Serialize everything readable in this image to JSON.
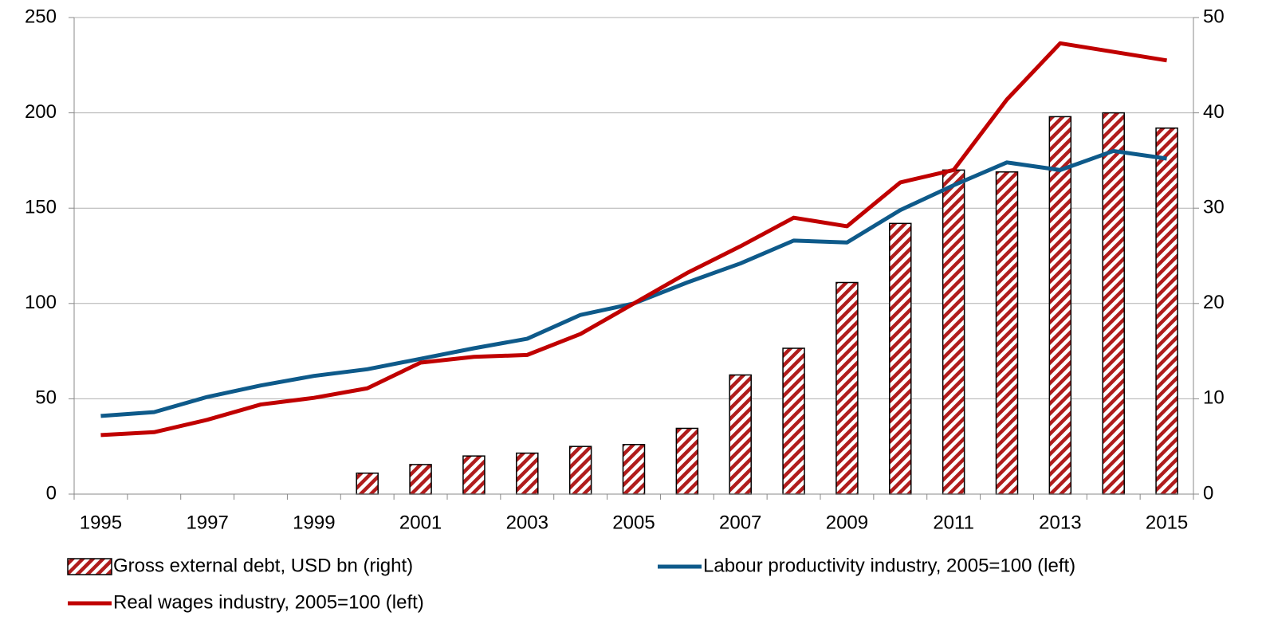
{
  "chart_data": {
    "type": "bar",
    "categories": [
      "1995",
      null,
      "1997",
      null,
      "1999",
      null,
      "2001",
      null,
      "2003",
      null,
      "2005",
      null,
      "2007",
      null,
      "2009",
      null,
      "2011",
      null,
      "2013",
      null,
      "2015"
    ],
    "series": [
      {
        "name": "Gross external debt, USD bn (right)",
        "type": "bar",
        "axis": "y2",
        "color": "#b01c1c",
        "values": [
          null,
          null,
          null,
          null,
          null,
          2.2,
          3.1,
          4.0,
          4.3,
          5.0,
          5.2,
          6.9,
          12.5,
          15.3,
          22.2,
          28.4,
          34.0,
          33.8,
          39.6,
          40.0,
          38.4
        ]
      },
      {
        "name": "Labour productivity industry, 2005=100 (left)",
        "type": "line",
        "color": "#0e5a8a",
        "values": [
          41,
          43,
          51,
          57,
          62,
          65.5,
          71,
          76.5,
          81.5,
          94,
          100,
          111,
          121,
          133,
          132,
          149,
          162,
          174,
          170,
          180,
          176
        ]
      },
      {
        "name": "Real wages industry, 2005=100 (left)",
        "type": "line",
        "color": "#c00000",
        "values": [
          31,
          32.5,
          39,
          47,
          50.5,
          55.5,
          69,
          72,
          73,
          84,
          100,
          116,
          130,
          145,
          140.5,
          163.5,
          170,
          207,
          236.5,
          232,
          227.5
        ]
      }
    ],
    "ylim": [
      0,
      250
    ],
    "yticks": [
      0,
      50,
      100,
      150,
      200,
      250
    ],
    "y2lim": [
      0,
      50
    ],
    "y2ticks": [
      0,
      10,
      20,
      30,
      40,
      50
    ],
    "grid": true,
    "legend": "bottom"
  }
}
